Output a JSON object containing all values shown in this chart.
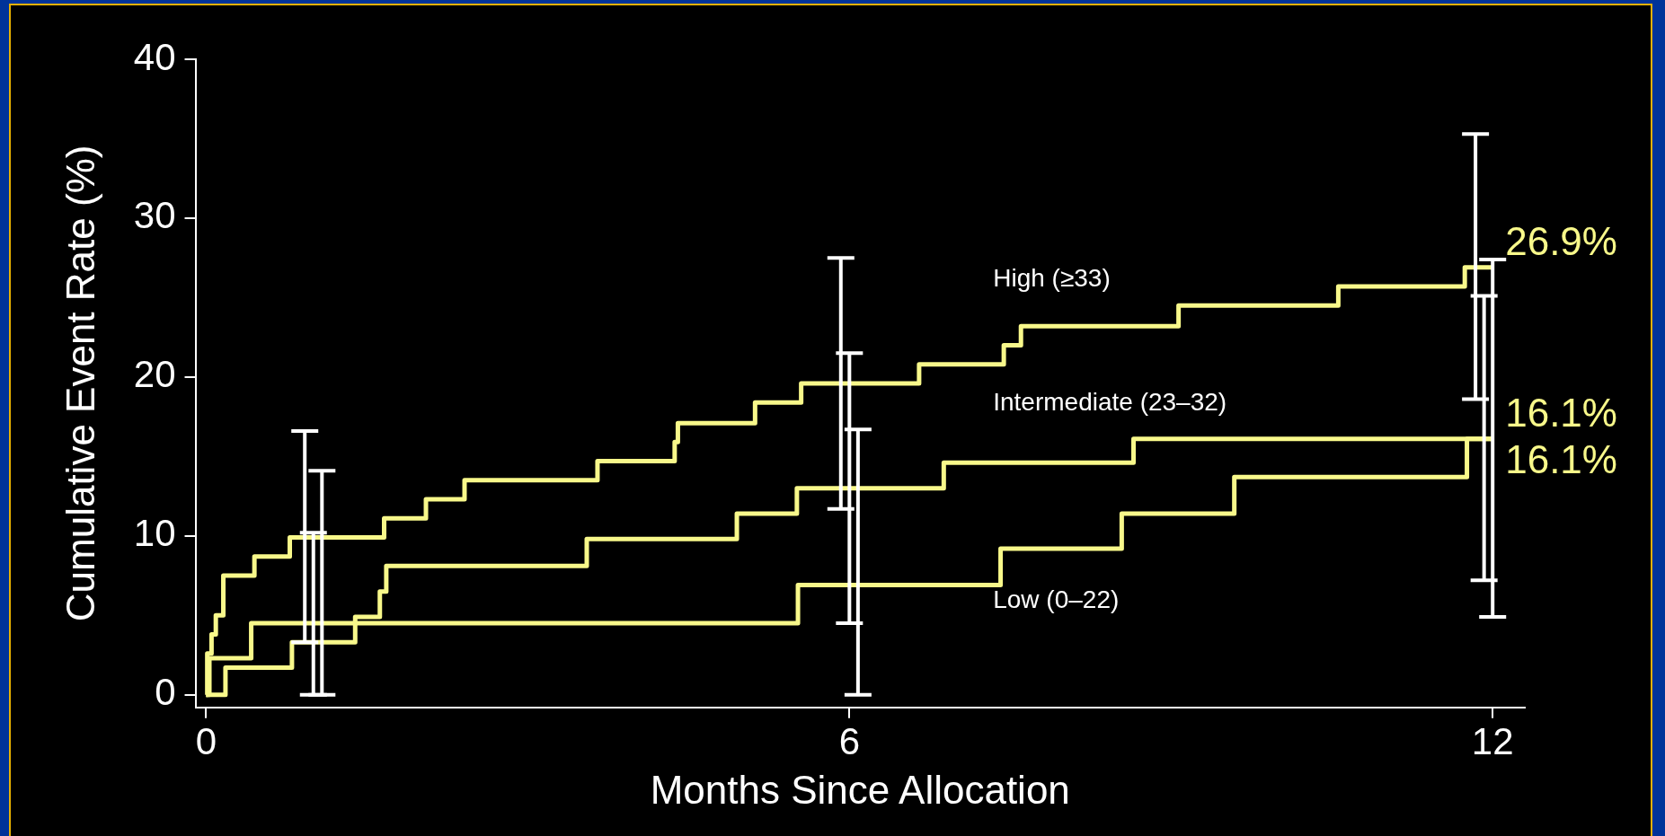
{
  "chart_data": {
    "type": "step",
    "xlabel": "Months Since Allocation",
    "ylabel": "Cumulative Event Rate (%)",
    "xlim": [
      -0.1,
      12.3
    ],
    "xticks": [
      0,
      6,
      12
    ],
    "ylim": [
      -0.8,
      40
    ],
    "yticks": [
      0,
      10,
      20,
      30,
      40
    ],
    "grid": false,
    "legend": false,
    "marker": "none",
    "line_style": "solid",
    "series": [
      {
        "name": "High (≥33)",
        "color": "#f8f88a",
        "x": [
          0,
          0.01,
          0.05,
          0.09,
          0.16,
          0.45,
          0.78,
          0.92,
          1.66,
          2.05,
          2.41,
          3.65,
          4.37,
          4.4,
          5.12,
          5.55,
          5.92,
          6.65,
          7.44,
          7.6,
          9.07,
          10.56,
          11.74,
          11.84,
          12
        ],
        "values": [
          0,
          2.6,
          3.8,
          5.0,
          7.5,
          8.7,
          9.9,
          9.9,
          11.1,
          12.3,
          13.5,
          14.7,
          15.9,
          17.1,
          18.4,
          19.6,
          19.6,
          20.8,
          22.0,
          23.2,
          24.5,
          25.7,
          26.9,
          26.9,
          26.9
        ],
        "errors": [
          null,
          null,
          null,
          null,
          null,
          null,
          null,
          [
            3.3,
            16.6
          ],
          null,
          null,
          null,
          null,
          null,
          null,
          null,
          null,
          [
            11.7,
            27.5
          ],
          null,
          null,
          null,
          null,
          null,
          null,
          [
            18.6,
            35.3
          ],
          null
        ],
        "value_labels": [
          null,
          null,
          null,
          null,
          null,
          null,
          null,
          null,
          null,
          null,
          null,
          null,
          null,
          null,
          null,
          null,
          null,
          null,
          null,
          null,
          null,
          null,
          null,
          null,
          "26.9%"
        ]
      },
      {
        "name": "Intermediate (23–32)",
        "color": "#f8f88a",
        "x": [
          0,
          0.18,
          0.8,
          1,
          1.39,
          1.62,
          1.68,
          3.55,
          4.95,
          5.51,
          6,
          6.88,
          8.65,
          11.92,
          12
        ],
        "values": [
          0,
          1.7,
          3.3,
          3.3,
          4.9,
          6.5,
          8.1,
          9.8,
          11.4,
          13.0,
          13.0,
          14.6,
          16.1,
          16.1,
          16.1
        ],
        "errors": [
          null,
          null,
          null,
          [
            0,
            10.2
          ],
          null,
          null,
          null,
          null,
          null,
          null,
          [
            4.5,
            21.5
          ],
          null,
          null,
          [
            7.2,
            25.1
          ],
          null
        ],
        "value_labels": [
          null,
          null,
          null,
          null,
          null,
          null,
          null,
          null,
          null,
          null,
          null,
          null,
          null,
          null,
          "16.1%"
        ]
      },
      {
        "name": "Low (0–22)",
        "color": "#f8f88a",
        "x": [
          0,
          0.03,
          0.42,
          1.08,
          5.52,
          6.08,
          7.41,
          8.54,
          9.59,
          11.76,
          12
        ],
        "values": [
          0,
          2.3,
          4.5,
          4.5,
          6.9,
          6.9,
          9.2,
          11.4,
          13.7,
          16.1,
          16.1
        ],
        "errors": [
          null,
          null,
          null,
          [
            0,
            14.1
          ],
          null,
          [
            0,
            16.7
          ],
          null,
          null,
          null,
          null,
          [
            4.9,
            27.4
          ]
        ],
        "value_labels": [
          null,
          null,
          null,
          null,
          null,
          null,
          null,
          null,
          null,
          null,
          "16.1%"
        ]
      }
    ]
  }
}
